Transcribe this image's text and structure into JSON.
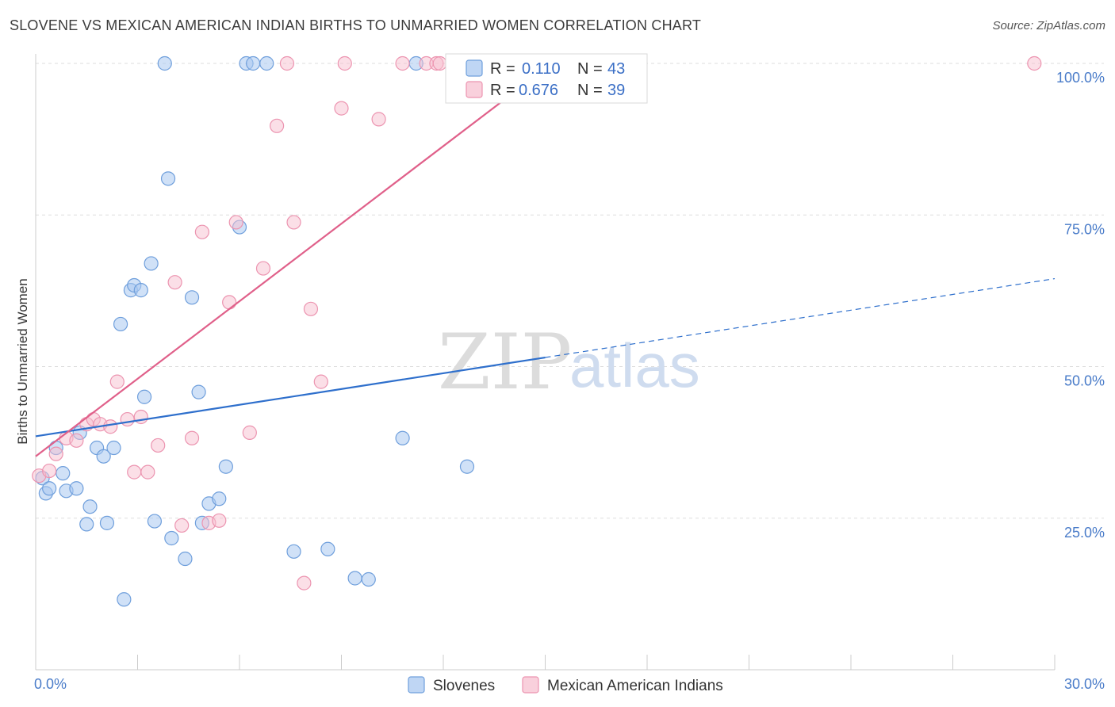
{
  "header": {
    "title": "SLOVENE VS MEXICAN AMERICAN INDIAN BIRTHS TO UNMARRIED WOMEN CORRELATION CHART",
    "source": "Source: ZipAtlas.com"
  },
  "watermark": {
    "zip": "ZIP",
    "atlas": "atlas"
  },
  "legend": {
    "r_label": "R =",
    "n_label": "N =",
    "items": [
      {
        "r": "0.110",
        "n": "43"
      },
      {
        "r": "0.676",
        "n": "39"
      }
    ]
  },
  "colors": {
    "slovenes_fill": "#aac8f0",
    "slovenes_stroke": "#6f9fdc",
    "slovenes_line": "#2e6fcc",
    "mexican_fill": "#f7c0d0",
    "mexican_stroke": "#ec94b0",
    "mexican_line": "#e0608a",
    "value_text": "#3b6fc6"
  },
  "chart_data": {
    "type": "scatter",
    "title": "SLOVENE VS MEXICAN AMERICAN INDIAN BIRTHS TO UNMARRIED WOMEN CORRELATION CHART",
    "xlabel": "",
    "ylabel": "Births to Unmarried Women",
    "xlim": [
      0,
      30
    ],
    "ylim": [
      0,
      100
    ],
    "x_tick_labels": [
      "0.0%",
      "30.0%"
    ],
    "y_tick_labels": [
      "25.0%",
      "50.0%",
      "75.0%",
      "100.0%"
    ],
    "y_ticks": [
      25,
      50,
      75,
      100
    ],
    "grid": true,
    "legend_position": "top-center",
    "series": [
      {
        "name": "Slovenes",
        "r": 0.11,
        "n": 43,
        "points": [
          [
            0.2,
            31.6
          ],
          [
            0.3,
            29.1
          ],
          [
            0.4,
            29.9
          ],
          [
            0.6,
            36.6
          ],
          [
            0.8,
            32.4
          ],
          [
            0.9,
            29.5
          ],
          [
            1.2,
            29.9
          ],
          [
            1.3,
            39.1
          ],
          [
            1.5,
            24.0
          ],
          [
            1.6,
            26.9
          ],
          [
            1.8,
            36.6
          ],
          [
            2.0,
            35.2
          ],
          [
            2.1,
            24.2
          ],
          [
            2.3,
            36.6
          ],
          [
            2.5,
            57.0
          ],
          [
            2.6,
            11.6
          ],
          [
            2.8,
            62.6
          ],
          [
            2.9,
            63.4
          ],
          [
            3.1,
            62.6
          ],
          [
            3.2,
            45.0
          ],
          [
            3.4,
            67.0
          ],
          [
            3.5,
            24.5
          ],
          [
            3.8,
            100.0
          ],
          [
            3.9,
            81.0
          ],
          [
            4.0,
            21.7
          ],
          [
            4.4,
            18.3
          ],
          [
            4.6,
            61.4
          ],
          [
            4.8,
            45.8
          ],
          [
            4.9,
            24.2
          ],
          [
            5.1,
            27.4
          ],
          [
            5.4,
            28.2
          ],
          [
            5.6,
            33.5
          ],
          [
            6.0,
            73.0
          ],
          [
            6.2,
            100.0
          ],
          [
            6.4,
            100.0
          ],
          [
            6.8,
            100.0
          ],
          [
            7.6,
            19.5
          ],
          [
            8.6,
            19.9
          ],
          [
            9.4,
            15.1
          ],
          [
            9.8,
            14.9
          ],
          [
            10.8,
            38.2
          ],
          [
            11.2,
            100.0
          ],
          [
            12.7,
            33.5
          ]
        ],
        "trend": {
          "x": [
            0.0,
            15.0
          ],
          "y": [
            38.5,
            51.5
          ],
          "dashed_to": [
            30.0,
            64.5
          ]
        }
      },
      {
        "name": "Mexican American Indians",
        "r": 0.676,
        "n": 39,
        "points": [
          [
            0.1,
            32.0
          ],
          [
            0.4,
            32.8
          ],
          [
            0.6,
            35.6
          ],
          [
            0.9,
            38.2
          ],
          [
            1.2,
            37.8
          ],
          [
            1.5,
            40.5
          ],
          [
            1.7,
            41.3
          ],
          [
            1.9,
            40.5
          ],
          [
            2.2,
            40.1
          ],
          [
            2.4,
            47.5
          ],
          [
            2.7,
            41.3
          ],
          [
            2.9,
            32.6
          ],
          [
            3.1,
            41.7
          ],
          [
            3.3,
            32.6
          ],
          [
            3.6,
            37.0
          ],
          [
            4.1,
            63.9
          ],
          [
            4.3,
            23.8
          ],
          [
            4.6,
            38.2
          ],
          [
            4.9,
            72.2
          ],
          [
            5.1,
            24.2
          ],
          [
            5.4,
            24.6
          ],
          [
            5.7,
            60.6
          ],
          [
            5.9,
            73.8
          ],
          [
            6.3,
            39.1
          ],
          [
            6.7,
            66.2
          ],
          [
            7.1,
            89.7
          ],
          [
            7.4,
            100.0
          ],
          [
            7.6,
            73.8
          ],
          [
            7.9,
            14.3
          ],
          [
            8.1,
            59.5
          ],
          [
            8.4,
            47.5
          ],
          [
            9.0,
            92.6
          ],
          [
            9.1,
            100.0
          ],
          [
            10.1,
            90.8
          ],
          [
            10.8,
            100.0
          ],
          [
            11.5,
            100.0
          ],
          [
            11.8,
            100.0
          ],
          [
            11.9,
            100.0
          ],
          [
            29.4,
            100.0
          ]
        ],
        "trend": {
          "x": [
            0.0,
            15.2
          ],
          "y": [
            35.2,
            100.0
          ]
        }
      }
    ]
  },
  "bottom_legend": {
    "items": [
      {
        "label": "Slovenes"
      },
      {
        "label": "Mexican American Indians"
      }
    ]
  }
}
